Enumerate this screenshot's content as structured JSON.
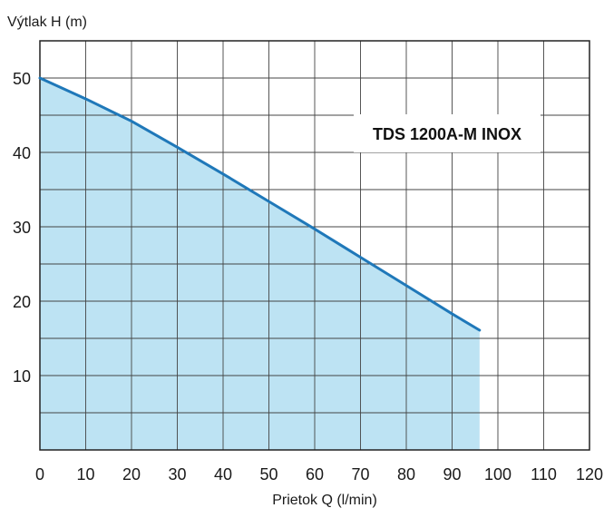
{
  "chart_data": {
    "type": "area",
    "ylabel": "Výtlak H (m)",
    "xlabel": "Prietok Q (l/min)",
    "xlim": [
      0,
      120
    ],
    "ylim": [
      0,
      55
    ],
    "x_ticks": [
      0,
      10,
      20,
      30,
      40,
      50,
      60,
      70,
      80,
      90,
      100,
      110,
      120
    ],
    "y_ticks": [
      10,
      20,
      30,
      40,
      50
    ],
    "x_grid_step": 10,
    "y_grid_step": 5,
    "grid": true,
    "series": [
      {
        "name": "TDS 1200A-M INOX",
        "x": [
          0,
          10,
          20,
          30,
          40,
          50,
          60,
          70,
          80,
          90,
          96
        ],
        "y": [
          50,
          47.2,
          44.2,
          40.7,
          37.1,
          33.4,
          29.7,
          25.9,
          22.1,
          18.3,
          16.1
        ]
      }
    ],
    "colors": {
      "line": "#1f78b9",
      "fill": "#bde3f3",
      "grid": "#444444",
      "label_box": "#ffffff"
    }
  }
}
